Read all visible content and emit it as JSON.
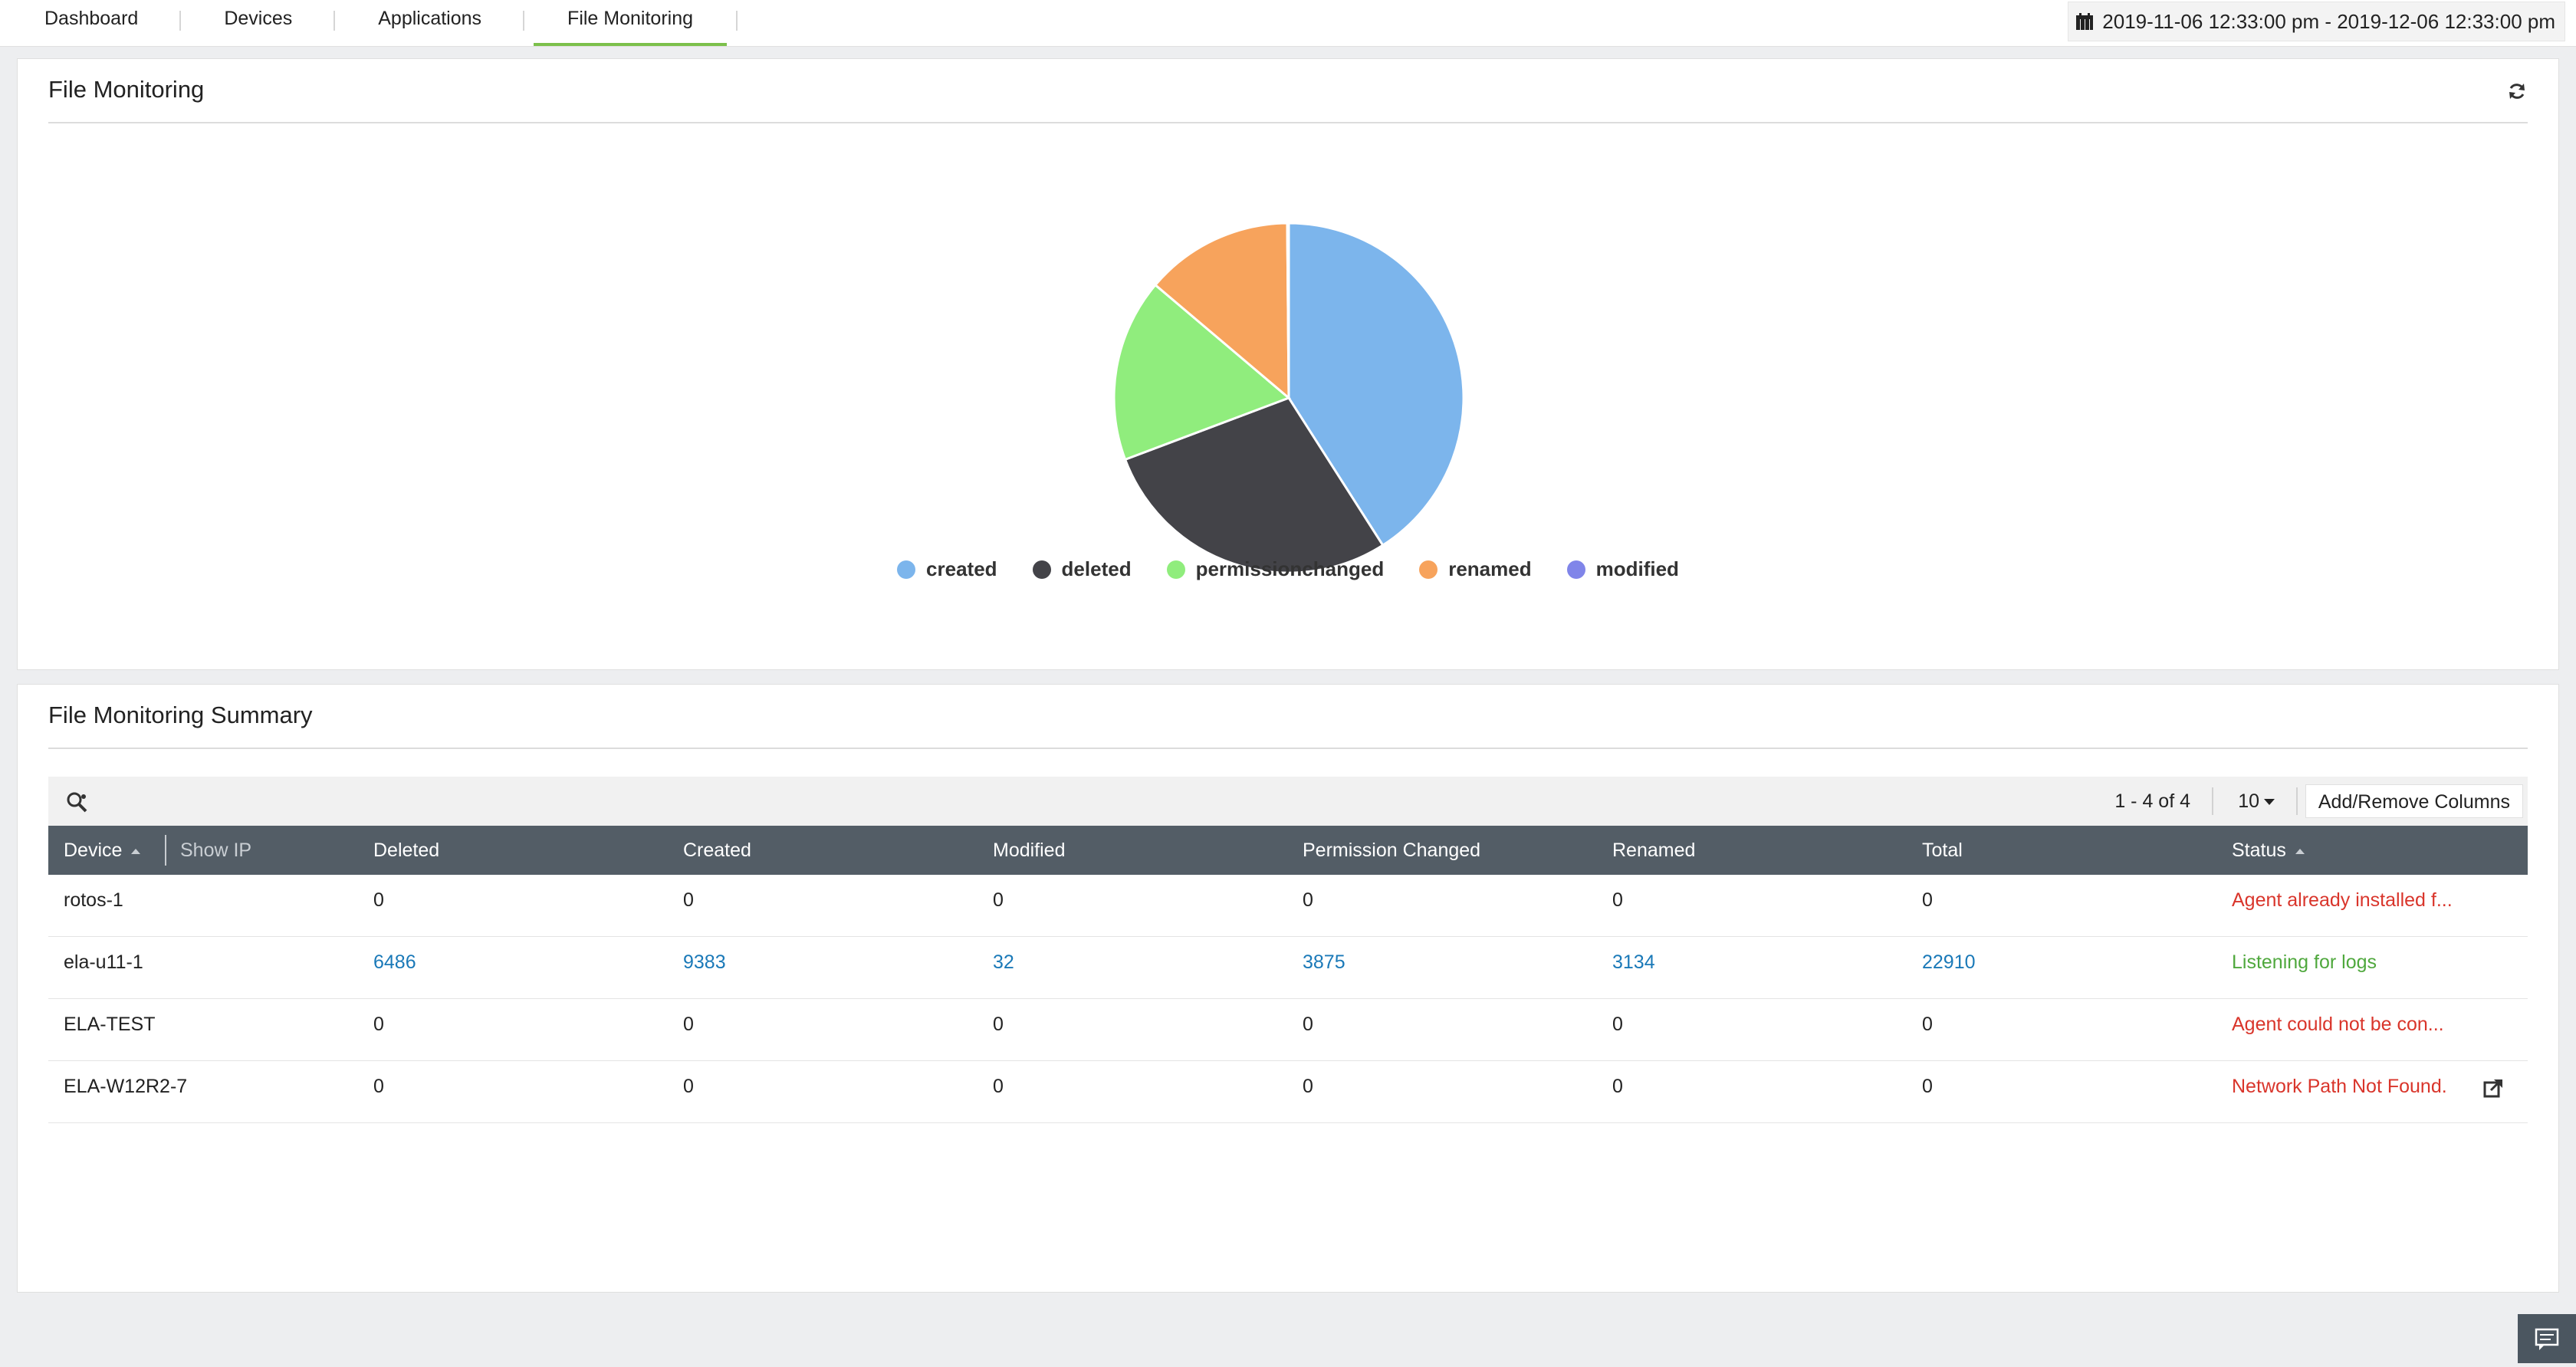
{
  "tabs": [
    {
      "label": "Dashboard",
      "active": false
    },
    {
      "label": "Devices",
      "active": false
    },
    {
      "label": "Applications",
      "active": false
    },
    {
      "label": "File Monitoring",
      "active": true
    }
  ],
  "date_range": "2019-11-06 12:33:00 pm - 2019-12-06 12:33:00 pm",
  "chart_panel": {
    "title": "File Monitoring",
    "icons": {
      "refresh": "refresh-icon",
      "date": "calendar-icon"
    }
  },
  "chart_data": {
    "type": "pie",
    "labels": [
      "created",
      "deleted",
      "permissionchanged",
      "renamed",
      "modified"
    ],
    "values": [
      9383,
      6486,
      3875,
      3134,
      32
    ],
    "colors": [
      "#7cb5ec",
      "#434348",
      "#90ed7d",
      "#f7a35c",
      "#8085e9"
    ],
    "legend_position": "bottom"
  },
  "summary_panel": {
    "title": "File Monitoring Summary",
    "pager": "1 - 4 of 4",
    "per_page": "10",
    "add_remove_columns": "Add/Remove Columns",
    "columns": {
      "device": "Device",
      "show_ip": "Show IP",
      "deleted": "Deleted",
      "created": "Created",
      "modified": "Modified",
      "permission_changed": "Permission Changed",
      "renamed": "Renamed",
      "total": "Total",
      "status": "Status"
    },
    "rows": [
      {
        "device": "rotos-1",
        "deleted": "0",
        "created": "0",
        "modified": "0",
        "permission_changed": "0",
        "renamed": "0",
        "total": "0",
        "status": "Agent already installed f...",
        "status_type": "error"
      },
      {
        "device": "ela-u11-1",
        "deleted": "6486",
        "created": "9383",
        "modified": "32",
        "permission_changed": "3875",
        "renamed": "3134",
        "total": "22910",
        "status": "Listening for logs",
        "status_type": "ok"
      },
      {
        "device": "ELA-TEST",
        "deleted": "0",
        "created": "0",
        "modified": "0",
        "permission_changed": "0",
        "renamed": "0",
        "total": "0",
        "status": "Agent could not be con...",
        "status_type": "error"
      },
      {
        "device": "ELA-W12R2-7",
        "deleted": "0",
        "created": "0",
        "modified": "0",
        "permission_changed": "0",
        "renamed": "0",
        "total": "0",
        "status": "Network Path Not Found.",
        "status_type": "error"
      }
    ]
  },
  "colors": {
    "accent": "#7cc04b",
    "link": "#1a79b8",
    "error": "#d9352b",
    "ok": "#4fa83d",
    "header_bg": "#535d66"
  }
}
